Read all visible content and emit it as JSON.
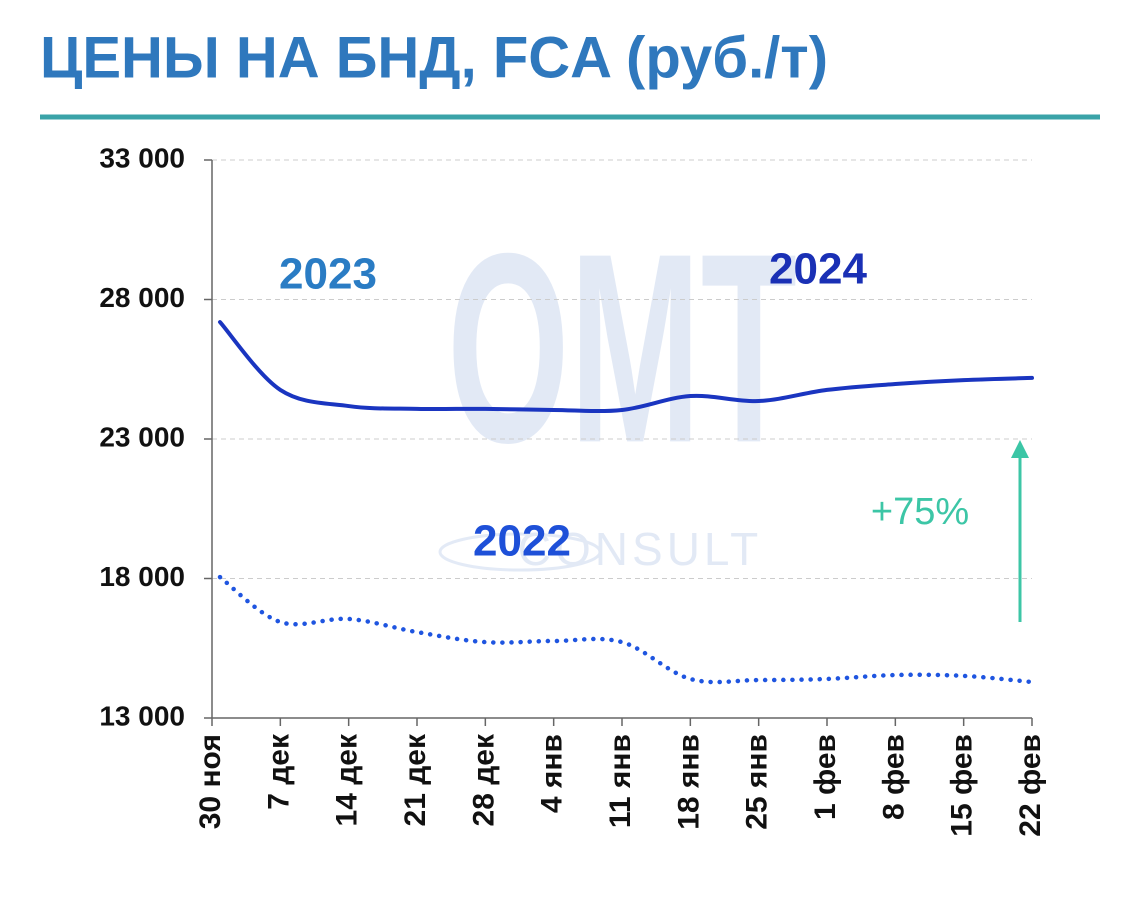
{
  "chart_data": {
    "type": "line",
    "title": "ЦЕНЫ НА БНД, FCA (руб./т)",
    "categories": [
      "30 ноя",
      "7 дек",
      "14 дек",
      "21 дек",
      "28 дек",
      "4 янв",
      "11 янв",
      "18 янв",
      "25 янв",
      "1 фев",
      "8 фев",
      "15 фев",
      "22 фев"
    ],
    "series": [
      {
        "color": "#1a35c0",
        "style": "solid",
        "values": [
          27190,
          24760,
          24180,
          24080,
          24080,
          24040,
          24040,
          24540,
          24360,
          24760,
          24970,
          25110,
          25190
        ]
      },
      {
        "color": "#1f55e0",
        "style": "dotted",
        "values": [
          18050,
          16440,
          16550,
          16080,
          15720,
          15760,
          15720,
          14400,
          14360,
          14400,
          14540,
          14510,
          14290
        ]
      }
    ],
    "ylim": [
      13000,
      33000
    ],
    "yticks": [
      {
        "value": 13000,
        "label": "13 000"
      },
      {
        "value": 18000,
        "label": "18 000"
      },
      {
        "value": 23000,
        "label": "23 000"
      },
      {
        "value": 28000,
        "label": "28 000"
      },
      {
        "value": 33000,
        "label": "33 000"
      }
    ],
    "grid": true,
    "annotations": [
      {
        "text": "2023",
        "color": "#2a7cc4"
      },
      {
        "text": "2024",
        "color": "#1a30b5"
      },
      {
        "text": "2022",
        "color": "#1e50d8"
      },
      {
        "text": "+75%",
        "color": "#3cc6a6"
      }
    ],
    "watermark": {
      "logo": "OMT",
      "text": "CONSULT"
    }
  }
}
